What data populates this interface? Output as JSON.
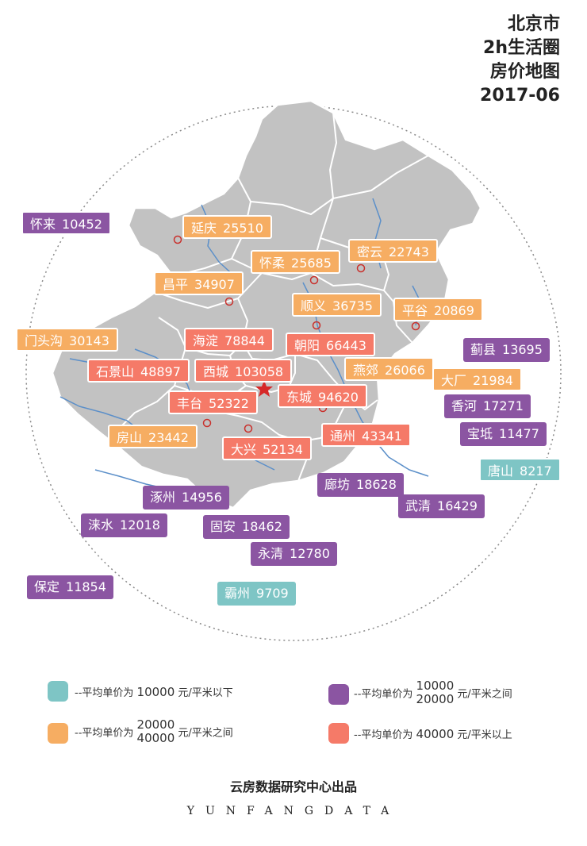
{
  "title": {
    "line1": "北京市",
    "line2": "2h生活圈",
    "line3": "房价地图",
    "line4": "2017-06"
  },
  "colors": {
    "below10k": "#7ec5c5",
    "10k_20k": "#8b55a2",
    "20k_40k": "#f6ad62",
    "above40k": "#f57a68",
    "land": "#c2c2c2",
    "river": "#5b8fc9"
  },
  "districts": [
    {
      "name": "怀来",
      "price": "10452",
      "tier": "c2"
    },
    {
      "name": "延庆",
      "price": "25510",
      "tier": "c3"
    },
    {
      "name": "怀柔",
      "price": "25685",
      "tier": "c3"
    },
    {
      "name": "密云",
      "price": "22743",
      "tier": "c3"
    },
    {
      "name": "昌平",
      "price": "34907",
      "tier": "c3"
    },
    {
      "name": "顺义",
      "price": "36735",
      "tier": "c3"
    },
    {
      "name": "平谷",
      "price": "20869",
      "tier": "c3"
    },
    {
      "name": "门头沟",
      "price": "30143",
      "tier": "c3"
    },
    {
      "name": "海淀",
      "price": "78844",
      "tier": "c4"
    },
    {
      "name": "朝阳",
      "price": "66443",
      "tier": "c4"
    },
    {
      "name": "蓟县",
      "price": "13695",
      "tier": "c2"
    },
    {
      "name": "石景山",
      "price": "48897",
      "tier": "c4"
    },
    {
      "name": "西城",
      "price": "103058",
      "tier": "c4"
    },
    {
      "name": "燕郊",
      "price": "26066",
      "tier": "c3"
    },
    {
      "name": "大厂",
      "price": "21984",
      "tier": "c3"
    },
    {
      "name": "丰台",
      "price": "52322",
      "tier": "c4"
    },
    {
      "name": "东城",
      "price": "94620",
      "tier": "c4"
    },
    {
      "name": "香河",
      "price": "17271",
      "tier": "c2"
    },
    {
      "name": "房山",
      "price": "23442",
      "tier": "c3"
    },
    {
      "name": "通州",
      "price": "43341",
      "tier": "c4"
    },
    {
      "name": "宝坻",
      "price": "11477",
      "tier": "c2"
    },
    {
      "name": "大兴",
      "price": "52134",
      "tier": "c4"
    },
    {
      "name": "唐山",
      "price": "8217",
      "tier": "c1"
    },
    {
      "name": "廊坊",
      "price": "18628",
      "tier": "c2"
    },
    {
      "name": "涿州",
      "price": "14956",
      "tier": "c2"
    },
    {
      "name": "武清",
      "price": "16429",
      "tier": "c2"
    },
    {
      "name": "涞水",
      "price": "12018",
      "tier": "c2"
    },
    {
      "name": "固安",
      "price": "18462",
      "tier": "c2"
    },
    {
      "name": "永清",
      "price": "12780",
      "tier": "c2"
    },
    {
      "name": "保定",
      "price": "11854",
      "tier": "c2"
    },
    {
      "name": "霸州",
      "price": "9709",
      "tier": "c1"
    }
  ],
  "legend": {
    "prefix": "--平均单价为",
    "below": {
      "v1": "10000",
      "suffix": "元/平米以下"
    },
    "between1": {
      "v1": "10000",
      "v2": "20000",
      "suffix": "元/平米之间"
    },
    "between2": {
      "v1": "20000",
      "v2": "40000",
      "suffix": "元/平米之间"
    },
    "above": {
      "v1": "40000",
      "suffix": "元/平米以上"
    }
  },
  "footer": {
    "org": "云房数据研究中心出品",
    "brand": "YUNFANGDATA"
  }
}
